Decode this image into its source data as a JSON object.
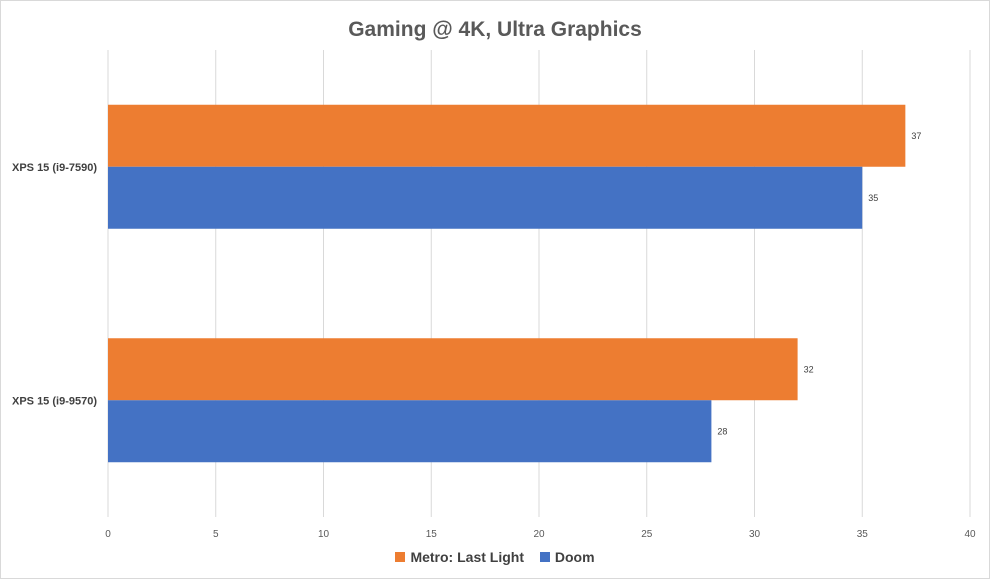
{
  "chart_data": {
    "type": "bar",
    "orientation": "horizontal",
    "title": "Gaming @ 4K, Ultra Graphics",
    "categories": [
      "XPS 15 (i9-7590)",
      "XPS 15 (i9-9570)"
    ],
    "series": [
      {
        "name": "Metro: Last Light",
        "color": "#ED7D31",
        "values": [
          37,
          32
        ]
      },
      {
        "name": "Doom",
        "color": "#4472C4",
        "values": [
          35,
          28
        ]
      }
    ],
    "xlim": [
      0,
      40
    ],
    "xticks": [
      "0",
      "5",
      "10",
      "15",
      "20",
      "25",
      "30",
      "35",
      "40"
    ],
    "grid": true,
    "legend_position": "bottom",
    "data_labels": true
  }
}
